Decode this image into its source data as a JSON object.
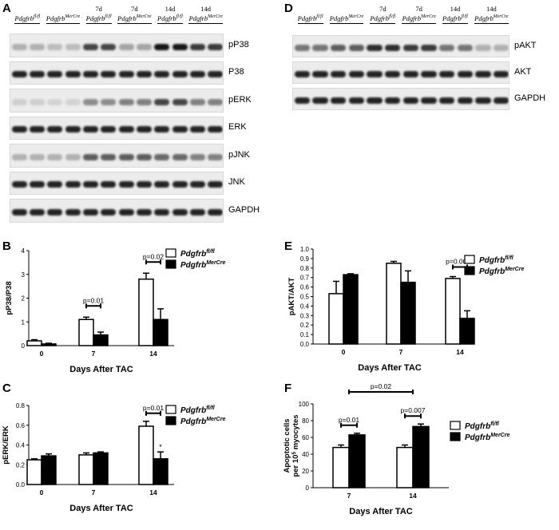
{
  "panel_letters": [
    "A",
    "B",
    "C",
    "D",
    "E",
    "F"
  ],
  "blot_A": {
    "groups": [
      {
        "time": "",
        "genotype": "Pdgfrb",
        "sup": "fl/fl"
      },
      {
        "time": "",
        "genotype": "Pdgfrb",
        "sup": "MerCre"
      },
      {
        "time": "7d",
        "genotype": "Pdgfrb",
        "sup": "fl/fl"
      },
      {
        "time": "7d",
        "genotype": "Pdgfrb",
        "sup": "MerCre"
      },
      {
        "time": "14d",
        "genotype": "Pdgfrb",
        "sup": "fl/fl"
      },
      {
        "time": "14d",
        "genotype": "Pdgfrb",
        "sup": "MerCre"
      }
    ],
    "bands": [
      "pP38",
      "P38",
      "pERK",
      "ERK",
      "pJNK",
      "JNK",
      "GAPDH"
    ]
  },
  "blot_D": {
    "groups": [
      {
        "time": "",
        "genotype": "Pdgfrb",
        "sup": "fl/fl"
      },
      {
        "time": "",
        "genotype": "Pdgfrb",
        "sup": "MerCre"
      },
      {
        "time": "7d",
        "genotype": "Pdgfrb",
        "sup": "fl/fl"
      },
      {
        "time": "7d",
        "genotype": "Pdgfrb",
        "sup": "MerCre"
      },
      {
        "time": "14d",
        "genotype": "Pdgfrb",
        "sup": "fl/fl"
      },
      {
        "time": "14d",
        "genotype": "Pdgfrb",
        "sup": "MerCre"
      }
    ],
    "bands": [
      "pAKT",
      "AKT",
      "GAPDH"
    ]
  },
  "chart_data": [
    {
      "panel": "B",
      "type": "bar",
      "categories": [
        "0",
        "7",
        "14"
      ],
      "series": [
        {
          "name": "Pdgfrb fl/fl",
          "fill": "#ffffff",
          "values": [
            0.2,
            1.1,
            2.8
          ],
          "errors": [
            0.05,
            0.1,
            0.25
          ]
        },
        {
          "name": "Pdgfrb MerCre",
          "fill": "#000000",
          "values": [
            0.07,
            0.45,
            1.1
          ],
          "errors": [
            0.03,
            0.12,
            0.45
          ]
        }
      ],
      "xlabel": "Days After TAC",
      "ylabel": "pP38/P38",
      "ylim": [
        0,
        4
      ],
      "yticks": [
        0,
        1,
        2,
        3,
        4
      ],
      "annotations": [
        {
          "text": "p=0.01",
          "category": "7"
        },
        {
          "text": "p=0.02",
          "category": "14"
        }
      ],
      "legend": [
        {
          "base": "Pdgfrb",
          "sup": "fl/fl"
        },
        {
          "base": "Pdgfrb",
          "sup": "MerCre"
        }
      ]
    },
    {
      "panel": "C",
      "type": "bar",
      "categories": [
        "0",
        "7",
        "14"
      ],
      "series": [
        {
          "name": "Pdgfrb fl/fl",
          "fill": "#ffffff",
          "values": [
            0.25,
            0.3,
            0.59
          ],
          "errors": [
            0.01,
            0.02,
            0.05
          ]
        },
        {
          "name": "Pdgfrb MerCre",
          "fill": "#000000",
          "values": [
            0.29,
            0.32,
            0.26
          ],
          "errors": [
            0.02,
            0.01,
            0.07
          ]
        }
      ],
      "xlabel": "Days After TAC",
      "ylabel": "pERK/ERK",
      "ylim": [
        0,
        0.8
      ],
      "yticks": [
        0.0,
        0.2,
        0.4,
        0.6,
        0.8
      ],
      "annotations": [
        {
          "text": "p=0.01",
          "category": "14"
        },
        {
          "text": "*",
          "category": "14",
          "series": 1
        }
      ],
      "legend": [
        {
          "base": "Pdgfrb",
          "sup": "fl/fl"
        },
        {
          "base": "Pdgfrb",
          "sup": "MerCre"
        }
      ]
    },
    {
      "panel": "E",
      "type": "bar",
      "categories": [
        "0",
        "7",
        "14"
      ],
      "series": [
        {
          "name": "Pdgfrb fl/fl",
          "fill": "#ffffff",
          "values": [
            0.53,
            0.85,
            0.69
          ],
          "errors": [
            0.13,
            0.02,
            0.02
          ]
        },
        {
          "name": "Pdgfrb MerCre",
          "fill": "#000000",
          "values": [
            0.73,
            0.65,
            0.27
          ],
          "errors": [
            0.01,
            0.12,
            0.08
          ]
        }
      ],
      "xlabel": "Days After TAC",
      "ylabel": "pAKT/AKT",
      "ylim": [
        0,
        1.0
      ],
      "yticks": [
        0.0,
        0.1,
        0.2,
        0.3,
        0.4,
        0.5,
        0.6,
        0.7,
        0.8,
        0.9,
        1.0
      ],
      "annotations": [
        {
          "text": "p=0.0007",
          "category": "14"
        }
      ],
      "legend": [
        {
          "base": "Pdgfrb",
          "sup": "fl/fl"
        },
        {
          "base": "Pdgfrb",
          "sup": "MerCre"
        }
      ]
    },
    {
      "panel": "F",
      "type": "bar",
      "categories": [
        "7",
        "14"
      ],
      "series": [
        {
          "name": "Pdgfrb fl/fl",
          "fill": "#ffffff",
          "values": [
            48,
            48
          ],
          "errors": [
            3,
            3
          ]
        },
        {
          "name": "Pdgfrb MerCre",
          "fill": "#000000",
          "values": [
            63,
            73
          ],
          "errors": [
            2,
            3
          ]
        }
      ],
      "xlabel": "Days After TAC",
      "ylabel": "Apoptotic cells",
      "ylabel2": {
        "base": "per 10",
        "sup": "5",
        "tail": " myocytes"
      },
      "ylim": [
        0,
        100
      ],
      "yticks": [
        0,
        20,
        40,
        60,
        80,
        100
      ],
      "annotations": [
        {
          "text": "p=0.01",
          "category": "7"
        },
        {
          "text": "p=0.007",
          "category": "14"
        },
        {
          "text": "p=0.02",
          "between": [
            "7",
            "14"
          ]
        }
      ],
      "legend": [
        {
          "base": "Pdgfrb",
          "sup": "fl/fl"
        },
        {
          "base": "Pdgfrb",
          "sup": "MerCre"
        }
      ]
    }
  ]
}
